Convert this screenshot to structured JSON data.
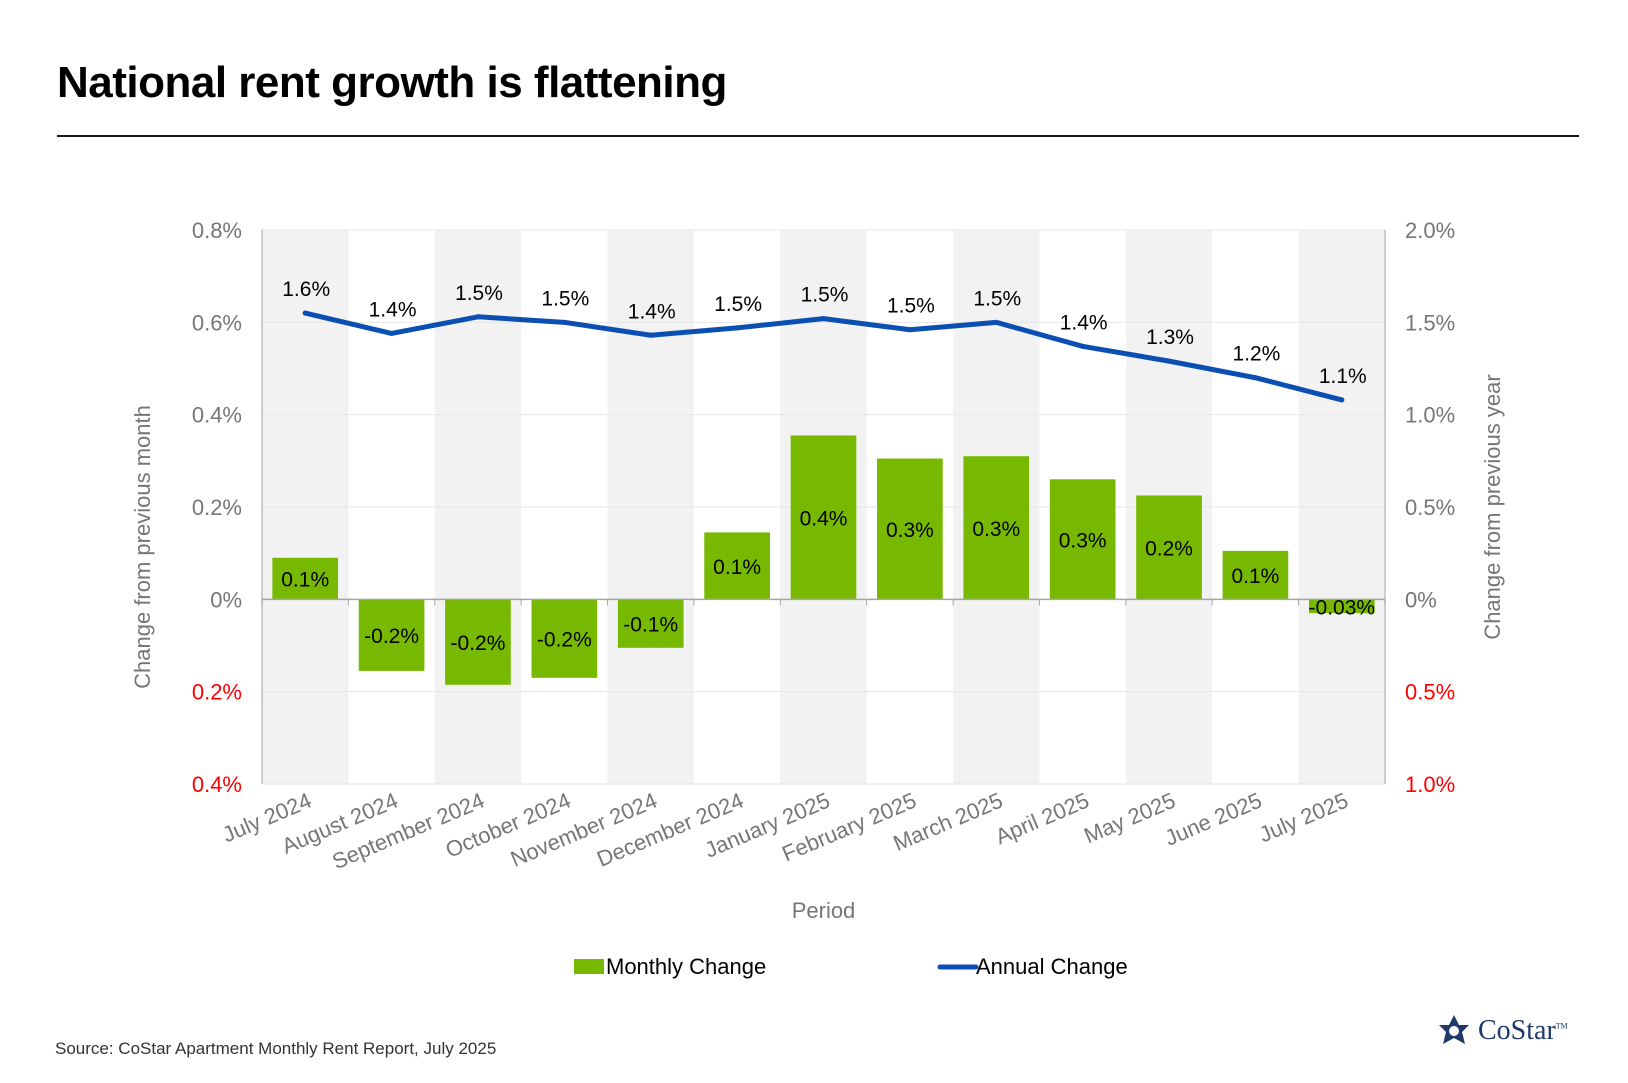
{
  "title": "National rent growth is flattening",
  "source": "Source: CoStar Apartment Monthly Rent Report, July 2025",
  "brand": "CoStar",
  "colors": {
    "bar": "#76b900",
    "line": "#0b4fb3",
    "neg_tick": "#ff0000",
    "band": "#f2f2f2"
  },
  "chart_data": {
    "type": "bar+line",
    "title": "National rent growth is flattening",
    "xlabel": "Period",
    "ylabel_left": "Change from previous month",
    "ylabel_right": "Change from previous year",
    "categories": [
      "July 2024",
      "August 2024",
      "September 2024",
      "October 2024",
      "November 2024",
      "December 2024",
      "January 2025",
      "February 2025",
      "March 2025",
      "April 2025",
      "May 2025",
      "June 2025",
      "July 2025"
    ],
    "series": [
      {
        "name": "Monthly Change",
        "type": "bar",
        "axis": "left",
        "values": [
          0.09,
          -0.155,
          -0.185,
          -0.17,
          -0.105,
          0.145,
          0.355,
          0.305,
          0.31,
          0.26,
          0.225,
          0.105,
          -0.03
        ],
        "labels": [
          "0.1%",
          "-0.2%",
          "-0.2%",
          "-0.2%",
          "-0.1%",
          "0.1%",
          "0.4%",
          "0.3%",
          "0.3%",
          "0.3%",
          "0.2%",
          "0.1%",
          "-0.03%"
        ]
      },
      {
        "name": "Annual Change",
        "type": "line",
        "axis": "right",
        "values": [
          1.55,
          1.44,
          1.53,
          1.5,
          1.43,
          1.47,
          1.52,
          1.46,
          1.5,
          1.37,
          1.29,
          1.2,
          1.08
        ],
        "labels": [
          "1.6%",
          "1.4%",
          "1.5%",
          "1.5%",
          "1.4%",
          "1.5%",
          "1.5%",
          "1.5%",
          "1.5%",
          "1.4%",
          "1.3%",
          "1.2%",
          "1.1%"
        ]
      }
    ],
    "ylim_left": [
      -0.4,
      0.8
    ],
    "ylim_right": [
      -1.0,
      2.0
    ],
    "left_ticks": [
      {
        "value": 0.8,
        "label": "0.8%",
        "negative": false
      },
      {
        "value": 0.6,
        "label": "0.6%",
        "negative": false
      },
      {
        "value": 0.4,
        "label": "0.4%",
        "negative": false
      },
      {
        "value": 0.2,
        "label": "0.2%",
        "negative": false
      },
      {
        "value": 0.0,
        "label": "0%",
        "negative": false
      },
      {
        "value": -0.2,
        "label": "0.2%",
        "negative": true
      },
      {
        "value": -0.4,
        "label": "0.4%",
        "negative": true
      }
    ],
    "right_ticks": [
      {
        "value": 2.0,
        "label": "2.0%",
        "negative": false
      },
      {
        "value": 1.5,
        "label": "1.5%",
        "negative": false
      },
      {
        "value": 1.0,
        "label": "1.0%",
        "negative": false
      },
      {
        "value": 0.5,
        "label": "0.5%",
        "negative": false
      },
      {
        "value": 0.0,
        "label": "0%",
        "negative": false
      },
      {
        "value": -0.5,
        "label": "0.5%",
        "negative": true
      },
      {
        "value": -1.0,
        "label": "1.0%",
        "negative": true
      }
    ],
    "grid": true,
    "legend": {
      "position": "bottom-center",
      "entries": [
        "Monthly Change",
        "Annual Change"
      ]
    }
  }
}
